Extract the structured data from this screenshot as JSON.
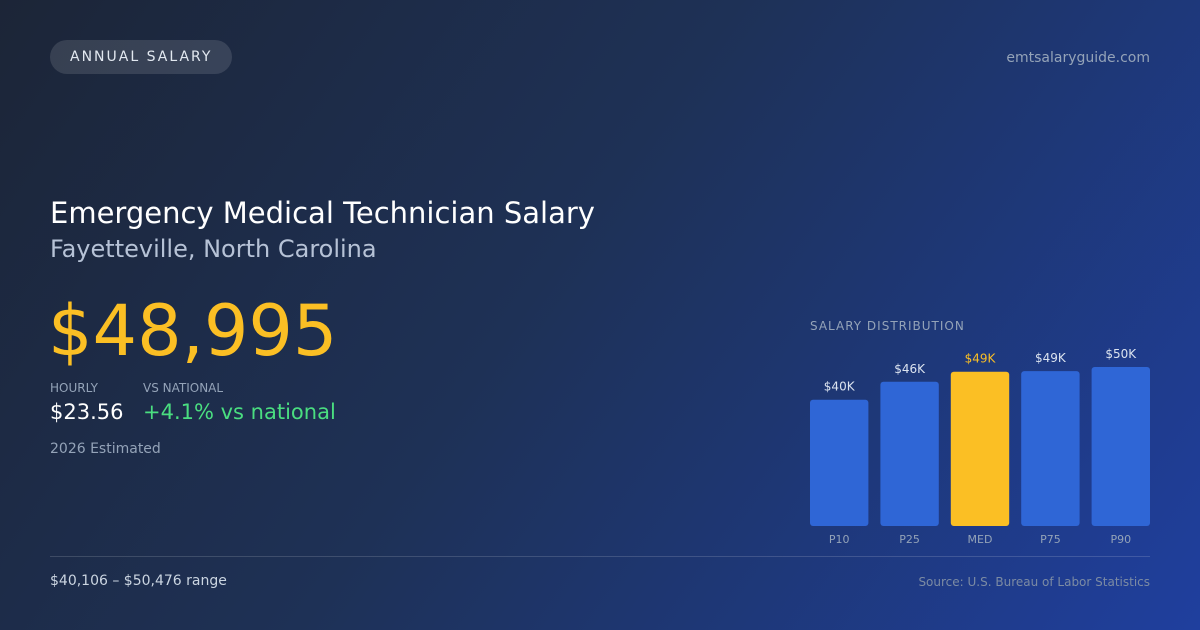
{
  "badge": "ANNUAL SALARY",
  "site": "emtsalaryguide.com",
  "title": "Emergency Medical Technician Salary",
  "subtitle": "Fayetteville, North Carolina",
  "salary": "$48,995",
  "hourly_label": "HOURLY",
  "hourly": "$23.56",
  "vs_label": "VS NATIONAL",
  "vs": "+4.1% vs national",
  "estimate": "2026 Estimated",
  "range": "$40,106 – $50,476 range",
  "source": "Source: U.S. Bureau of Labor Statistics",
  "chart_data": {
    "type": "bar",
    "title": "SALARY DISTRIBUTION",
    "categories": [
      "P10",
      "P25",
      "MED",
      "P75",
      "P90"
    ],
    "values": [
      40.1,
      45.8,
      49,
      49.2,
      50.5
    ],
    "value_labels": [
      "$40K",
      "$46K",
      "$49K",
      "$49K",
      "$50K"
    ],
    "color": "#2f66d6",
    "colors": [
      "#2f66d6",
      "#2f66d6",
      "#fbbf24",
      "#2f66d6",
      "#2f66d6"
    ],
    "ylim": [
      0,
      50.5
    ]
  }
}
